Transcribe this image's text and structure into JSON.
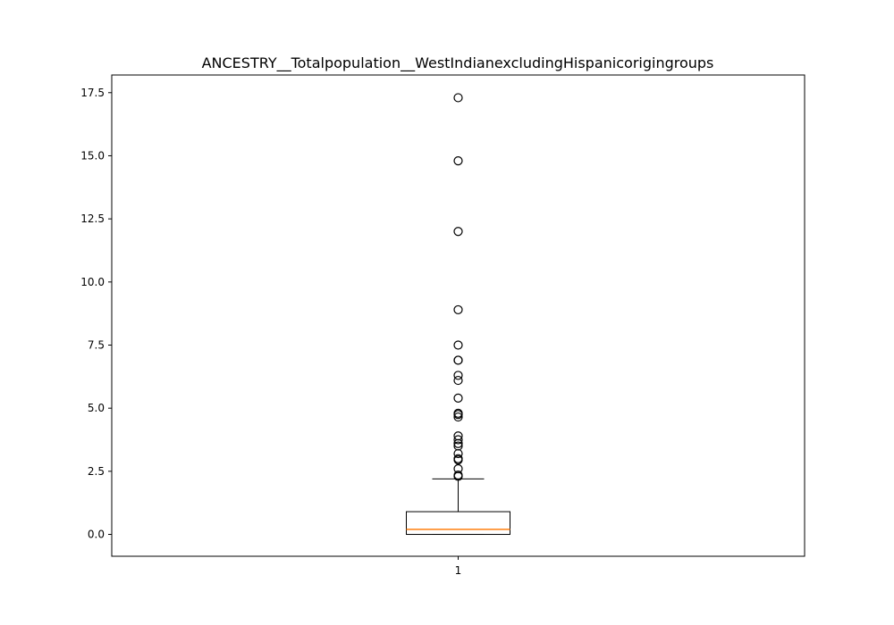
{
  "chart_data": {
    "type": "boxplot",
    "title": "ANCESTRY__Totalpopulation__WestIndianexcludingHispanicorigingroups",
    "xlabel": "",
    "ylabel": "",
    "categories": [
      "1"
    ],
    "ylim": [
      -0.866,
      18.2
    ],
    "yticks": [
      0.0,
      2.5,
      5.0,
      7.5,
      10.0,
      12.5,
      15.0,
      17.5
    ],
    "ytick_labels": [
      "0.0",
      "2.5",
      "5.0",
      "7.5",
      "10.0",
      "12.5",
      "15.0",
      "17.5"
    ],
    "grid": false,
    "boxes": [
      {
        "category": "1",
        "whisker_low": 0.0,
        "q1": 0.0,
        "median": 0.2,
        "q3": 0.9,
        "whisker_high": 2.2,
        "outliers": [
          2.3,
          2.35,
          2.6,
          2.95,
          3.0,
          3.2,
          3.5,
          3.6,
          3.75,
          3.9,
          4.65,
          4.75,
          4.8,
          5.4,
          6.1,
          6.3,
          6.9,
          6.9,
          7.5,
          8.9,
          12.0,
          14.8,
          17.3
        ]
      }
    ],
    "colors": {
      "box": "#000000",
      "median": "#ff7f0e",
      "outlier": "#000000"
    }
  }
}
